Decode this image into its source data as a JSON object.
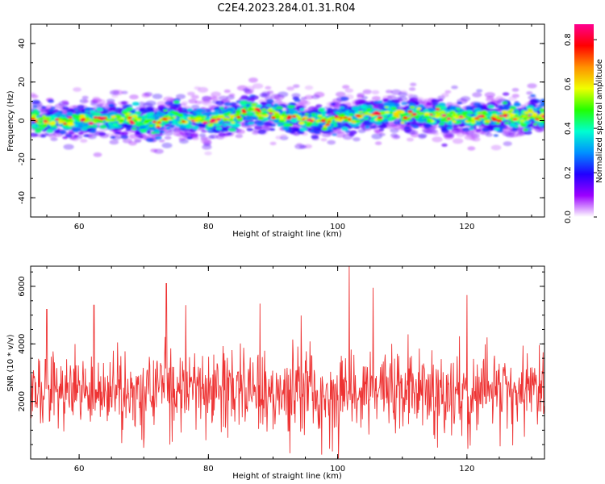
{
  "title": "C2E4.2023.284.01.31.R04",
  "chart_data": [
    {
      "type": "heatmap",
      "xlabel": "Height of straight line (km)",
      "ylabel": "Frequency (Hz)",
      "xlim": [
        52.5,
        132
      ],
      "ylim": [
        -50,
        50
      ],
      "xticks": [
        "60",
        "80",
        "100",
        "120"
      ],
      "yticks": [
        "-40",
        "-20",
        "0",
        "20",
        "40"
      ],
      "colorbar": {
        "label": "Normalized spectral amplitude",
        "range": [
          0.0,
          0.87
        ],
        "ticks": [
          "0.0",
          "0.2",
          "0.4",
          "0.6",
          "0.8"
        ],
        "colormap": [
          "#ffffff",
          "#9c00ff",
          "#2200ff",
          "#0090ff",
          "#00ffd0",
          "#22ff00",
          "#f0ff00",
          "#ff9000",
          "#ff0000",
          "#ff0090"
        ]
      },
      "ridge_center_hz": {
        "x": [
          52.5,
          56,
          60,
          64,
          68,
          72,
          73,
          76,
          80,
          84,
          87,
          90,
          94,
          98,
          100,
          104,
          108,
          112,
          116,
          120,
          124,
          128,
          132
        ],
        "y": [
          0,
          0,
          0,
          1,
          1,
          -2,
          2,
          1,
          0,
          2,
          6,
          3,
          1,
          0,
          1,
          3,
          4,
          3,
          2,
          2,
          2,
          2,
          2
        ]
      },
      "grid": false
    },
    {
      "type": "line",
      "xlabel": "Height of straight line (km)",
      "ylabel": "SNR (10 * v/v)",
      "xlim": [
        52.5,
        132
      ],
      "ylim": [
        0,
        6700
      ],
      "xticks": [
        "60",
        "80",
        "100",
        "120"
      ],
      "yticks": [
        "2000",
        "4000",
        "6000"
      ],
      "series": [
        {
          "color": "#ee3333",
          "mean": 2400,
          "spread": 650,
          "peaks": {
            "x": [
              55.0,
              62.3,
              73.5,
              76.5,
              101.8,
              105.5,
              120.0,
              88.0,
              97.5
            ],
            "y": [
              5200,
              5350,
              6100,
              5350,
              6700,
              5950,
              5700,
              5400,
              150
            ]
          }
        }
      ],
      "grid": false
    }
  ]
}
